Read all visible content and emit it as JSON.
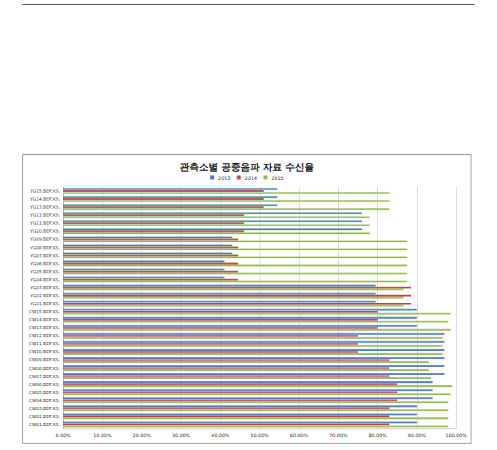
{
  "chart_data": {
    "type": "bar",
    "title": "관측소별 공중음파 자료 수신율",
    "orientation": "horizontal",
    "grid": true,
    "legend": "top",
    "categories": [
      "YG15.BDF.KS.",
      "YG14.BDF.KS.",
      "YG13.BDF.KS.",
      "YG12.BDF.KS.",
      "YG11.BDF.KS.",
      "YG10.BDF.KS.",
      "YG09.BDF.KS.",
      "YG08.BDF.KS.",
      "YG07.BDF.KS.",
      "YG06.BDF.KS.",
      "YG05.BDF.KS.",
      "YG04.BDF.KS.",
      "YG03.BDF.KS.",
      "YG02.BDF.KS.",
      "YG01.BDF.KS.",
      "CW15.BDF.KS.",
      "CW14.BDF.KS.",
      "CW13.BDF.KS.",
      "CW12.BDF.KS.",
      "CW11.BDF.KS.",
      "CW10.BDF.KS.",
      "CW09.BDF.KS.",
      "CW08.BDF.KS.",
      "CW07.BDF.KS.",
      "CW06.BDF.KS.",
      "CW05.BDF.KS.",
      "CW04.BDF.KS.",
      "CW03.BDF.KS.",
      "CW02.BDF.KS.",
      "CW01.BDF.KS."
    ],
    "series": [
      {
        "name": "2013",
        "color": "#4f81bd",
        "values": [
          54.5,
          54.5,
          54.5,
          76,
          76,
          76,
          43,
          43,
          43,
          41,
          41,
          41,
          79.5,
          79.5,
          79.5,
          90,
          90,
          90,
          97,
          97,
          97,
          97,
          97,
          97,
          94,
          94,
          94,
          90,
          90,
          90
        ]
      },
      {
        "name": "2014",
        "color": "#c0504d",
        "values": [
          51,
          51,
          51,
          46,
          46,
          46,
          44.5,
          44.5,
          44.5,
          44.5,
          44.5,
          44.5,
          88.5,
          88.5,
          88.5,
          80,
          80,
          80,
          75,
          75,
          75,
          83,
          83,
          83,
          85,
          85,
          85,
          83,
          83,
          83
        ]
      },
      {
        "name": "2015",
        "color": "#9bbb59",
        "values": [
          83,
          83,
          83,
          78,
          78,
          78,
          87.5,
          87.5,
          87.5,
          87.5,
          87.5,
          87.5,
          86.5,
          86.5,
          86.5,
          98.5,
          98,
          98.5,
          96.5,
          96.5,
          96.5,
          93,
          93,
          93.5,
          99,
          98.5,
          98,
          98,
          98,
          98
        ]
      }
    ],
    "xlim": [
      0,
      100
    ],
    "xticks": [
      {
        "value": 0,
        "label": "0.00%"
      },
      {
        "value": 10,
        "label": "10.00%"
      },
      {
        "value": 20,
        "label": "20.00%"
      },
      {
        "value": 30,
        "label": "30.00%"
      },
      {
        "value": 40,
        "label": "40.00%"
      },
      {
        "value": 50,
        "label": "50.00%"
      },
      {
        "value": 60,
        "label": "60.00%"
      },
      {
        "value": 70,
        "label": "70.00%"
      },
      {
        "value": 80,
        "label": "80.00%"
      },
      {
        "value": 90,
        "label": "90.00%"
      },
      {
        "value": 100,
        "label": "100.00%"
      }
    ]
  }
}
